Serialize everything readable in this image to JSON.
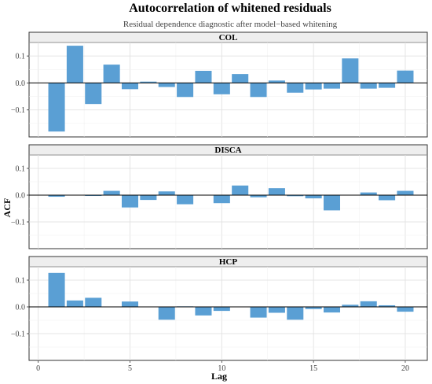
{
  "chart_data": {
    "type": "bar",
    "title": "Autocorrelation of whitened residuals",
    "subtitle": "Residual dependence diagnostic after model−based whitening",
    "xlabel": "Lag",
    "ylabel": "ACF",
    "xlim": [
      -0.5,
      21.2
    ],
    "ylim": [
      -0.2,
      0.15
    ],
    "x_ticks": [
      0,
      5,
      10,
      15,
      20
    ],
    "x_tick_labels": [
      "0",
      "5",
      "10",
      "15",
      "20"
    ],
    "y_ticks": [
      -0.1,
      0.0,
      0.1
    ],
    "y_tick_labels": [
      "−0.1",
      "0.0",
      "0.1"
    ],
    "bar_color": "#5a9fd4",
    "grid": true,
    "lags": [
      1,
      2,
      3,
      4,
      5,
      6,
      7,
      8,
      9,
      10,
      11,
      12,
      13,
      14,
      15,
      16,
      17,
      18,
      19,
      20
    ],
    "panels": [
      {
        "name": "COL",
        "values": [
          -0.18,
          0.138,
          -0.078,
          0.068,
          -0.023,
          0.005,
          -0.015,
          -0.052,
          0.045,
          -0.042,
          0.033,
          -0.052,
          0.009,
          -0.036,
          -0.024,
          -0.021,
          0.091,
          -0.021,
          -0.018,
          0.046
        ]
      },
      {
        "name": "DISCA",
        "values": [
          -0.006,
          0.0,
          -0.003,
          0.016,
          -0.046,
          -0.018,
          0.014,
          -0.034,
          0.0,
          -0.03,
          0.036,
          -0.008,
          0.026,
          -0.004,
          -0.012,
          -0.057,
          0.0,
          0.01,
          -0.019,
          0.016
        ]
      },
      {
        "name": "HCP",
        "values": [
          0.127,
          0.024,
          0.034,
          0.0,
          0.02,
          0.001,
          -0.048,
          0.002,
          -0.032,
          -0.015,
          0.0,
          -0.04,
          -0.022,
          -0.048,
          -0.008,
          -0.021,
          0.008,
          0.021,
          0.006,
          -0.018
        ]
      }
    ]
  }
}
